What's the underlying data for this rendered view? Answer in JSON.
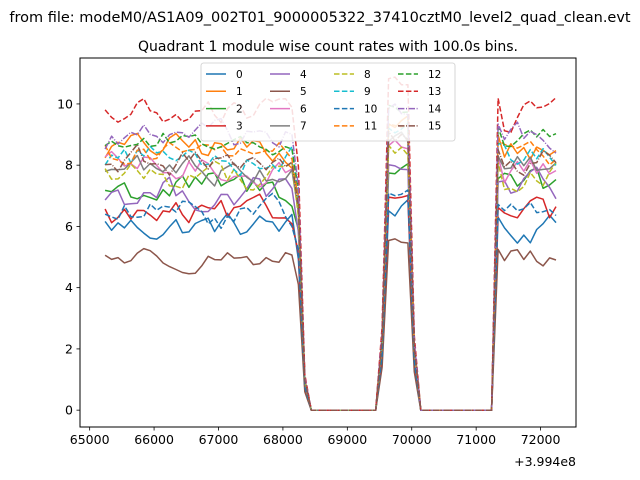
{
  "page": {
    "suptitle": "from file: modeM0/AS1A09_002T01_9000005322_37410cztM0_level2_quad_clean.evt",
    "offset_label": "+3.994e8"
  },
  "chart_data": {
    "type": "line",
    "title": "Quadrant 1 module wise count rates with 100.0s bins.",
    "xlabel": "",
    "ylabel": "",
    "x_offset": 399400000,
    "xlim": [
      64850,
      72550
    ],
    "ylim": [
      -0.55,
      11.5
    ],
    "xticks": [
      65000,
      66000,
      67000,
      68000,
      69000,
      70000,
      71000,
      72000
    ],
    "xtick_labels": [
      "65000",
      "66000",
      "67000",
      "68000",
      "69000",
      "70000",
      "71000",
      "72000"
    ],
    "yticks": [
      0,
      2,
      4,
      6,
      8,
      10
    ],
    "ytick_labels": [
      "0",
      "2",
      "4",
      "6",
      "8",
      "10"
    ],
    "grid": false,
    "legend": "top-center, 4 columns",
    "segments": [
      [
        65240,
        68240
      ],
      [
        68240,
        68340
      ],
      [
        69540,
        70040
      ],
      [
        71240,
        72240
      ]
    ],
    "series": [
      {
        "name": "0",
        "color": "#1f77b4",
        "dash": "solid",
        "level": 6.0,
        "amp": 0.35
      },
      {
        "name": "1",
        "color": "#ff7f0e",
        "dash": "solid",
        "level": 8.55,
        "amp": 0.35
      },
      {
        "name": "2",
        "color": "#2ca02c",
        "dash": "solid",
        "level": 7.2,
        "amp": 0.4
      },
      {
        "name": "3",
        "color": "#d62728",
        "dash": "solid",
        "level": 6.3,
        "amp": 0.35
      },
      {
        "name": "4",
        "color": "#9467bd",
        "dash": "solid",
        "level": 7.1,
        "amp": 0.4
      },
      {
        "name": "5",
        "color": "#8c564b",
        "dash": "solid",
        "level": 5.0,
        "amp": 0.25
      },
      {
        "name": "6",
        "color": "#e377c2",
        "dash": "solid",
        "level": 7.9,
        "amp": 0.35
      },
      {
        "name": "7",
        "color": "#7f7f7f",
        "dash": "solid",
        "level": 7.9,
        "amp": 0.35
      },
      {
        "name": "8",
        "color": "#bcbd22",
        "dash": "dashed",
        "level": 7.7,
        "amp": 0.35
      },
      {
        "name": "9",
        "color": "#17becf",
        "dash": "dashed",
        "level": 8.3,
        "amp": 0.35
      },
      {
        "name": "10",
        "color": "#1f77b4",
        "dash": "dashed",
        "level": 6.4,
        "amp": 0.35
      },
      {
        "name": "11",
        "color": "#ff7f0e",
        "dash": "dashed",
        "level": 8.4,
        "amp": 0.3
      },
      {
        "name": "12",
        "color": "#2ca02c",
        "dash": "dashed",
        "level": 8.8,
        "amp": 0.3
      },
      {
        "name": "13",
        "color": "#d62728",
        "dash": "dashed",
        "level": 9.7,
        "amp": 0.35
      },
      {
        "name": "14",
        "color": "#9467bd",
        "dash": "dashdot",
        "level": 8.9,
        "amp": 0.35
      },
      {
        "name": "15",
        "color": "#8c564b",
        "dash": "dashdot",
        "level": 8.1,
        "amp": 0.35
      }
    ]
  }
}
